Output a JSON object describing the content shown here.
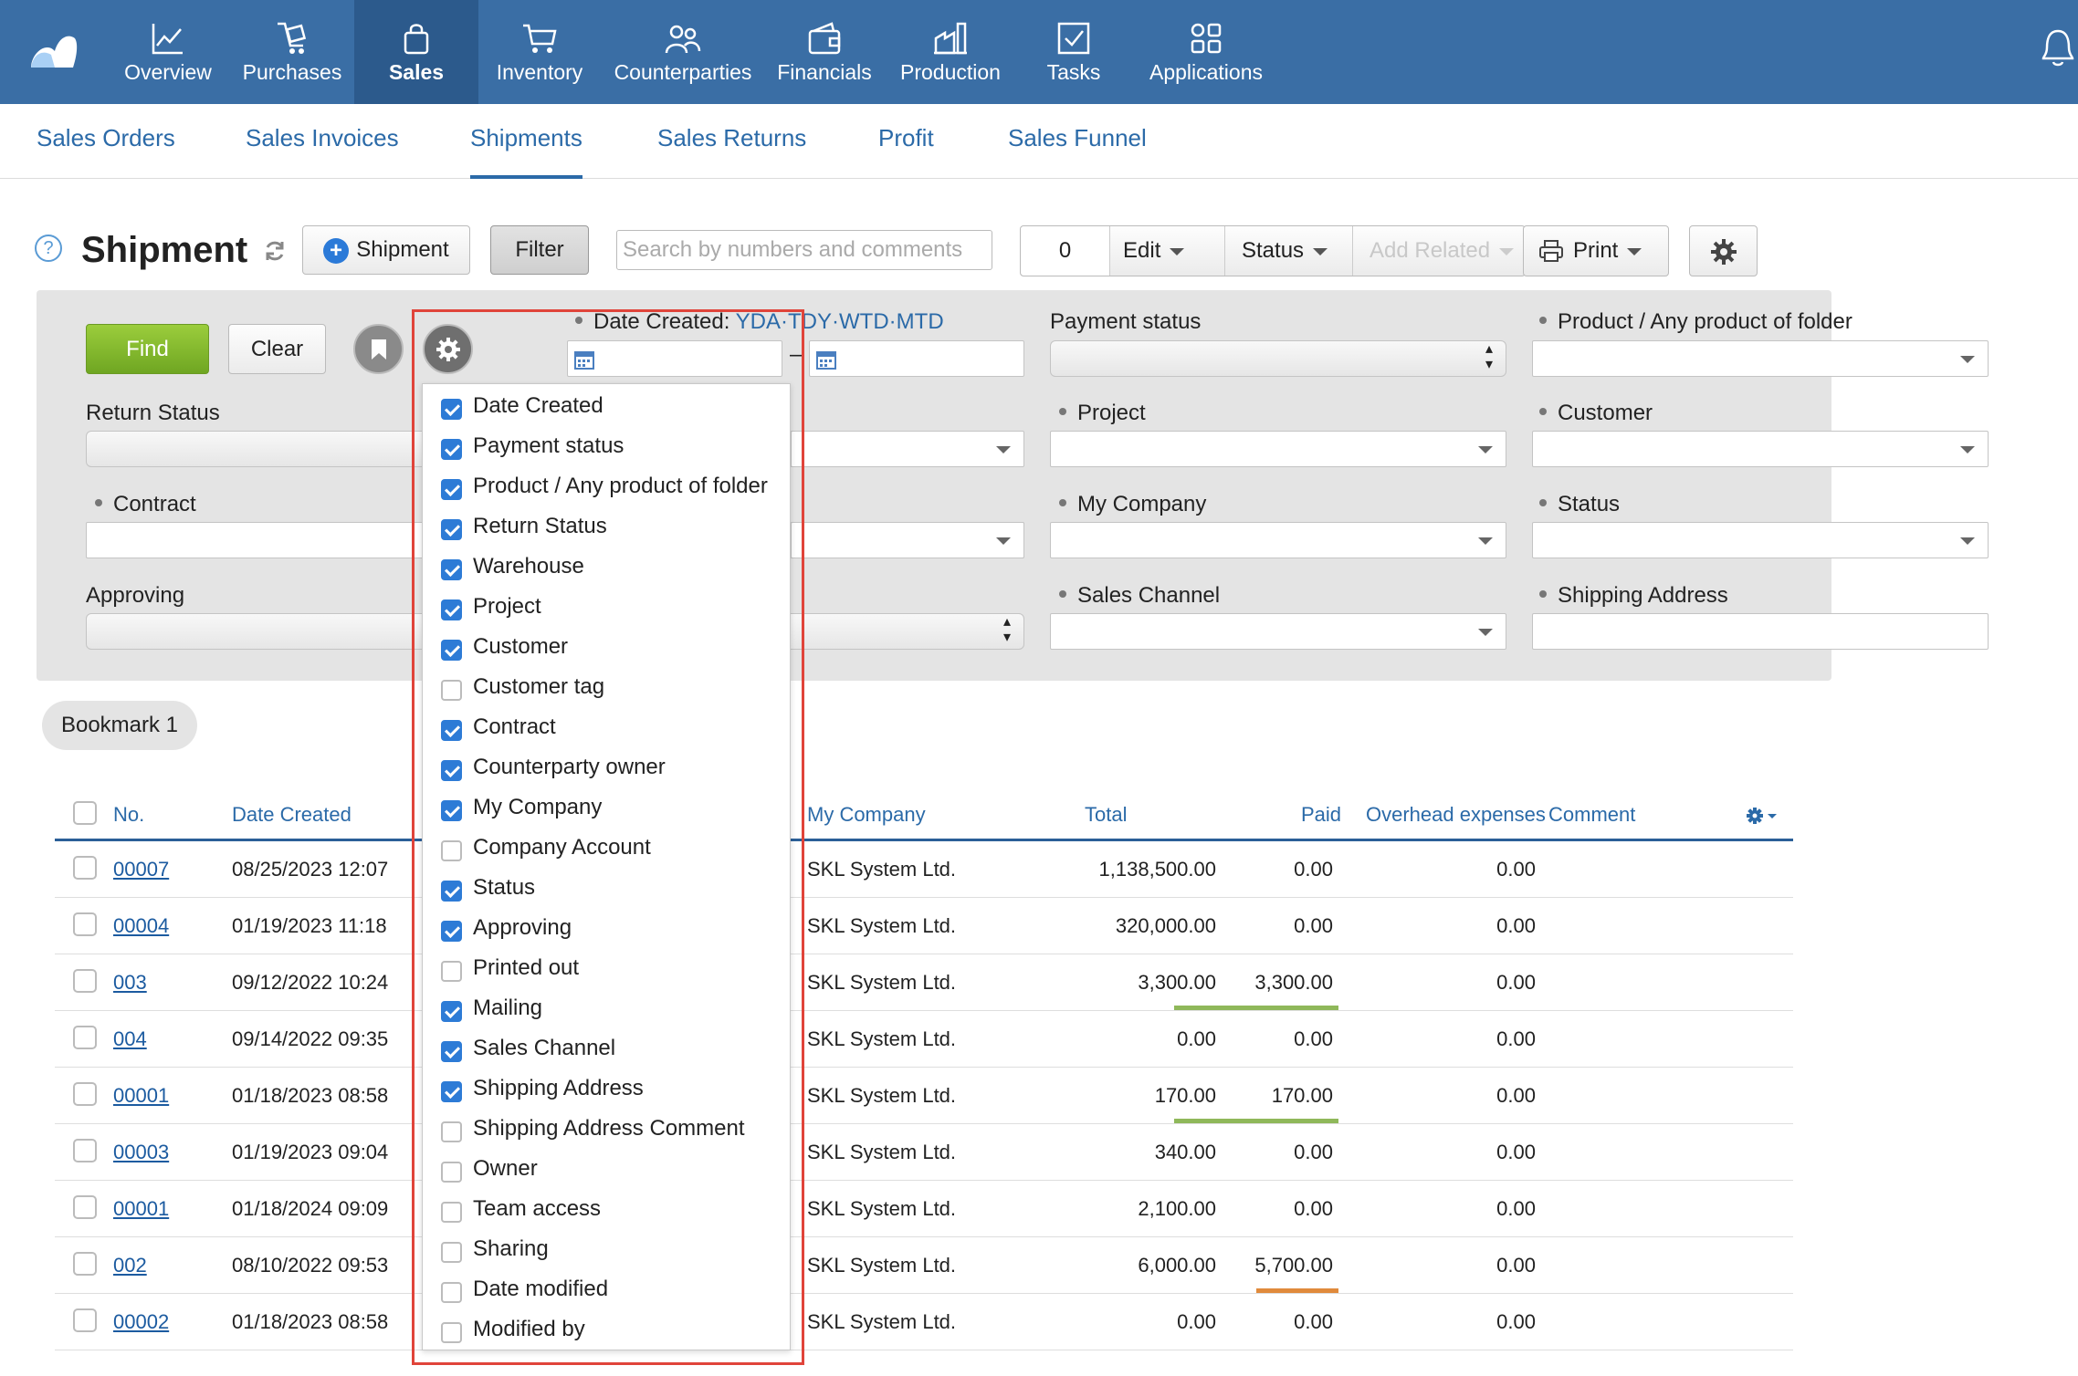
{
  "topnav": {
    "items": [
      {
        "label": "Overview",
        "icon": "chart-line-icon"
      },
      {
        "label": "Purchases",
        "icon": "cart-hand-icon"
      },
      {
        "label": "Sales",
        "icon": "shopping-bag-icon"
      },
      {
        "label": "Inventory",
        "icon": "cart-icon"
      },
      {
        "label": "Counterparties",
        "icon": "people-icon"
      },
      {
        "label": "Financials",
        "icon": "wallet-icon"
      },
      {
        "label": "Production",
        "icon": "factory-icon"
      },
      {
        "label": "Tasks",
        "icon": "checkbox-icon"
      },
      {
        "label": "Applications",
        "icon": "apps-icon"
      }
    ],
    "active": "Sales"
  },
  "subnav": {
    "items": [
      "Sales Orders",
      "Sales Invoices",
      "Shipments",
      "Sales Returns",
      "Profit",
      "Sales Funnel"
    ],
    "active": "Shipments"
  },
  "toolbar": {
    "help": "?",
    "title": "Shipment",
    "add_label": "Shipment",
    "filter_label": "Filter",
    "search_placeholder": "Search by numbers and comments",
    "count": "0",
    "edit_label": "Edit",
    "status_label": "Status",
    "add_related_label": "Add Related",
    "print_label": "Print"
  },
  "filter": {
    "find_label": "Find",
    "clear_label": "Clear",
    "date_created_label": "Date Created:",
    "date_shortcuts": [
      "YDA",
      "TDY",
      "WTD",
      "MTD"
    ],
    "payment_status_label": "Payment status",
    "product_label": "Product / Any product of folder",
    "return_status_label": "Return Status",
    "project_label": "Project",
    "customer_label": "Customer",
    "contract_label": "Contract",
    "my_company_label": "My Company",
    "status_label": "Status",
    "approving_label": "Approving",
    "sales_channel_label": "Sales Channel",
    "shipping_address_label": "Shipping Address",
    "date_separator": "–"
  },
  "bookmark": {
    "label": "Bookmark 1"
  },
  "table": {
    "headers": {
      "no": "No.",
      "date_created": "Date Created",
      "my_company": "My Company",
      "total": "Total",
      "paid": "Paid",
      "overhead": "Overhead expenses",
      "comment": "Comment"
    },
    "rows": [
      {
        "no": "00007",
        "date": "08/25/2023 12:07",
        "company": "SKL System Ltd.",
        "total": "1,138,500.00",
        "paid": "0.00",
        "overhead": "0.00",
        "paid_bar": ""
      },
      {
        "no": "00004",
        "date": "01/19/2023 11:18",
        "company": "SKL System Ltd.",
        "total": "320,000.00",
        "paid": "0.00",
        "overhead": "0.00",
        "paid_bar": ""
      },
      {
        "no": "003",
        "date": "09/12/2022 10:24",
        "company": "SKL System Ltd.",
        "total": "3,300.00",
        "paid": "3,300.00",
        "overhead": "0.00",
        "paid_bar": "#8fb85a"
      },
      {
        "no": "004",
        "date": "09/14/2022 09:35",
        "company": "SKL System Ltd.",
        "total": "0.00",
        "paid": "0.00",
        "overhead": "0.00",
        "paid_bar": ""
      },
      {
        "no": "00001",
        "date": "01/18/2023 08:58",
        "company": "SKL System Ltd.",
        "total": "170.00",
        "paid": "170.00",
        "overhead": "0.00",
        "paid_bar": "#8fb85a"
      },
      {
        "no": "00003",
        "date": "01/19/2023 09:04",
        "company": "SKL System Ltd.",
        "total": "340.00",
        "paid": "0.00",
        "overhead": "0.00",
        "paid_bar": ""
      },
      {
        "no": "00001",
        "date": "01/18/2024 09:09",
        "company": "SKL System Ltd.",
        "total": "2,100.00",
        "paid": "0.00",
        "overhead": "0.00",
        "paid_bar": ""
      },
      {
        "no": "002",
        "date": "08/10/2022 09:53",
        "company": "SKL System Ltd.",
        "total": "6,000.00",
        "paid": "5,700.00",
        "overhead": "0.00",
        "paid_bar": "#e08a3c"
      },
      {
        "no": "00002",
        "date": "01/18/2023 08:58",
        "company": "SKL System Ltd.",
        "total": "0.00",
        "paid": "0.00",
        "overhead": "0.00",
        "paid_bar": ""
      }
    ]
  },
  "column_menu": {
    "items": [
      {
        "label": "Date Created",
        "checked": true
      },
      {
        "label": "Payment status",
        "checked": true
      },
      {
        "label": "Product / Any product of folder",
        "checked": true
      },
      {
        "label": "Return Status",
        "checked": true
      },
      {
        "label": "Warehouse",
        "checked": true
      },
      {
        "label": "Project",
        "checked": true
      },
      {
        "label": "Customer",
        "checked": true
      },
      {
        "label": "Customer tag",
        "checked": false
      },
      {
        "label": "Contract",
        "checked": true
      },
      {
        "label": "Counterparty owner",
        "checked": true
      },
      {
        "label": "My Company",
        "checked": true
      },
      {
        "label": "Company Account",
        "checked": false
      },
      {
        "label": "Status",
        "checked": true
      },
      {
        "label": "Approving",
        "checked": true
      },
      {
        "label": "Printed out",
        "checked": false
      },
      {
        "label": "Mailing",
        "checked": true
      },
      {
        "label": "Sales Channel",
        "checked": true
      },
      {
        "label": "Shipping Address",
        "checked": true
      },
      {
        "label": "Shipping Address Comment",
        "checked": false
      },
      {
        "label": "Owner",
        "checked": false
      },
      {
        "label": "Team access",
        "checked": false
      },
      {
        "label": "Sharing",
        "checked": false
      },
      {
        "label": "Date modified",
        "checked": false
      },
      {
        "label": "Modified by",
        "checked": false
      }
    ]
  },
  "colors": {
    "nav_bg": "#3a6ea5",
    "nav_active": "#2c5a8c",
    "link": "#2b6aa8",
    "find_green": "#7fb32c",
    "highlight_red": "#e0443a"
  }
}
